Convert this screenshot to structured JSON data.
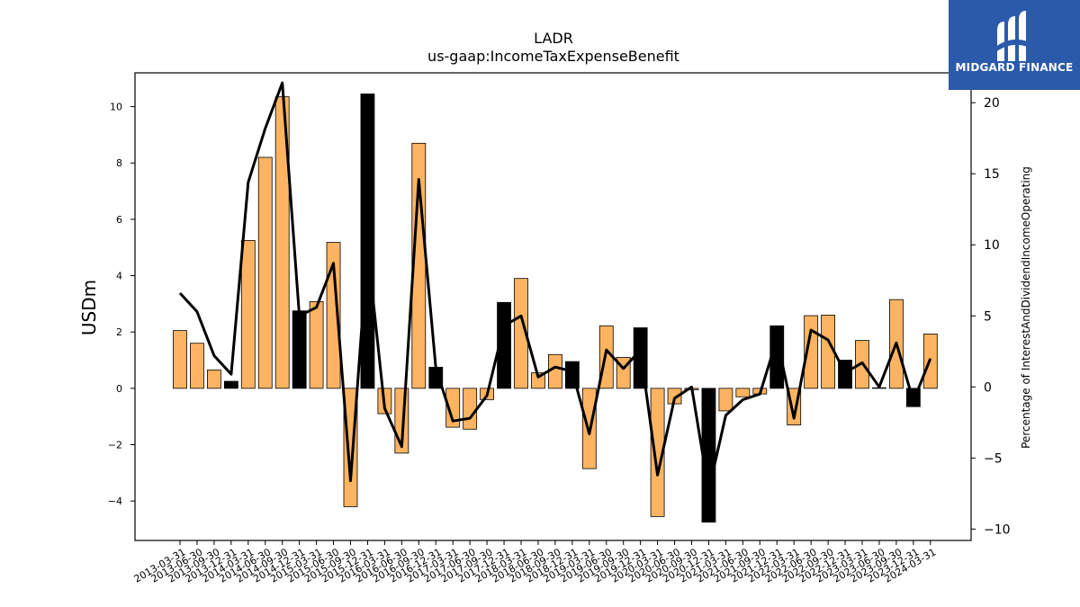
{
  "logo": {
    "text": "MIDGARD FINANCE"
  },
  "chart_data": {
    "type": "bar",
    "title": "LADR",
    "subtitle": "us-gaap:IncomeTaxExpenseBenefit",
    "ylabel": "USDm",
    "y2label": "Percentage of InterestAndDividendIncomeOperating",
    "ylim": [
      -5.4,
      11.2
    ],
    "y2lim": [
      -10.8,
      22.1
    ],
    "yticks": [
      -4,
      -2,
      0,
      2,
      4,
      6,
      8,
      10
    ],
    "y2ticks": [
      -10,
      -5,
      0,
      5,
      10,
      15,
      20
    ],
    "categories": [
      "2013-03-31",
      "2013-06-30",
      "2013-09-30",
      "2013-12-31",
      "2014-03-31",
      "2014-06-30",
      "2014-09-30",
      "2014-12-31",
      "2015-03-31",
      "2015-06-30",
      "2015-09-30",
      "2015-12-31",
      "2016-03-31",
      "2016-06-30",
      "2016-09-30",
      "2016-12-31",
      "2017-03-31",
      "2017-06-30",
      "2017-09-30",
      "2017-12-31",
      "2018-03-31",
      "2018-06-30",
      "2018-09-30",
      "2018-12-31",
      "2019-03-31",
      "2019-06-30",
      "2019-09-30",
      "2019-12-31",
      "2020-03-31",
      "2020-06-30",
      "2020-09-30",
      "2020-12-31",
      "2021-03-31",
      "2021-06-30",
      "2021-09-30",
      "2021-12-31",
      "2022-03-31",
      "2022-06-30",
      "2022-09-30",
      "2022-12-31",
      "2023-03-31",
      "2023-06-30",
      "2023-09-30",
      "2023-12-31",
      "2024-03-31"
    ],
    "series": [
      {
        "type": "bar",
        "axis": "left",
        "values": [
          2.05,
          1.6,
          0.65,
          0.25,
          5.25,
          8.2,
          10.35,
          2.75,
          3.08,
          5.18,
          -4.2,
          10.45,
          -0.9,
          -2.3,
          8.7,
          0.75,
          -1.38,
          -1.45,
          -0.4,
          3.05,
          3.9,
          0.55,
          1.2,
          0.95,
          -2.85,
          2.22,
          1.1,
          2.15,
          -4.55,
          -0.55,
          -0.05,
          -4.75,
          -0.8,
          -0.3,
          -0.2,
          2.22,
          -1.3,
          2.58,
          2.6,
          1.0,
          1.7,
          0.02,
          3.15,
          -0.65,
          1.93
        ],
        "highlight": [
          false,
          false,
          false,
          true,
          false,
          false,
          false,
          true,
          false,
          false,
          false,
          true,
          false,
          false,
          false,
          true,
          false,
          false,
          false,
          true,
          false,
          false,
          false,
          true,
          false,
          false,
          false,
          true,
          false,
          false,
          false,
          true,
          false,
          false,
          false,
          true,
          false,
          false,
          false,
          true,
          false,
          false,
          false,
          true,
          false
        ],
        "color": "#fdb462",
        "highlight_color": "#000000"
      },
      {
        "type": "line",
        "axis": "right",
        "color": "#000000",
        "values": [
          6.6,
          5.3,
          2.2,
          0.9,
          14.4,
          18.2,
          21.4,
          5.0,
          5.6,
          8.7,
          -6.6,
          9.8,
          -1.5,
          -4.2,
          14.6,
          1.3,
          -2.4,
          -2.2,
          -0.6,
          4.3,
          5.0,
          0.7,
          1.4,
          1.1,
          -3.3,
          2.6,
          1.3,
          2.6,
          -6.2,
          -0.8,
          0.0,
          -7.3,
          -2.0,
          -0.9,
          -0.5,
          3.4,
          -2.2,
          4.0,
          3.3,
          1.0,
          1.7,
          0.0,
          3.1,
          -1.0,
          2.0
        ]
      }
    ],
    "grid": false,
    "legend": "none"
  }
}
